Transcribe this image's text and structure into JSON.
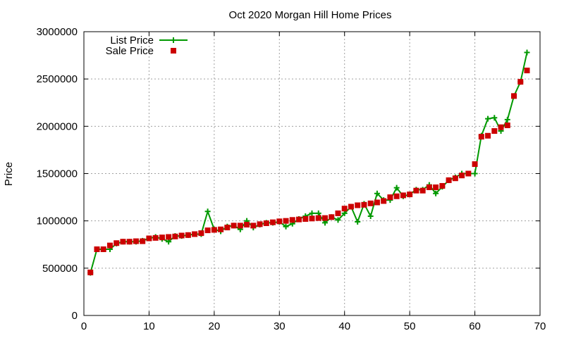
{
  "chart_data": {
    "type": "line",
    "title": "Oct 2020 Morgan Hill Home Prices",
    "xlabel": "",
    "ylabel": "Price",
    "xlim": [
      0,
      70
    ],
    "ylim": [
      0,
      3000000
    ],
    "xticks": [
      0,
      10,
      20,
      30,
      40,
      50,
      60,
      70
    ],
    "yticks": [
      0,
      500000,
      1000000,
      1500000,
      2000000,
      2500000,
      3000000
    ],
    "grid": true,
    "legend_position": "top-left",
    "colors": {
      "list": "#009900",
      "sale": "#cc0000"
    },
    "x": [
      1,
      2,
      3,
      4,
      5,
      6,
      7,
      8,
      9,
      10,
      11,
      12,
      13,
      14,
      15,
      16,
      17,
      18,
      19,
      20,
      21,
      22,
      23,
      24,
      25,
      26,
      27,
      28,
      29,
      30,
      31,
      32,
      33,
      34,
      35,
      36,
      37,
      38,
      39,
      40,
      41,
      42,
      43,
      44,
      45,
      46,
      47,
      48,
      49,
      50,
      51,
      52,
      53,
      54,
      55,
      56,
      57,
      58,
      59,
      60,
      61,
      62,
      63,
      64,
      65,
      66,
      67,
      68
    ],
    "series": [
      {
        "name": "List Price",
        "style": "line-plus",
        "values": [
          450000,
          700000,
          700000,
          700000,
          760000,
          780000,
          780000,
          780000,
          790000,
          815000,
          830000,
          810000,
          780000,
          840000,
          840000,
          850000,
          860000,
          860000,
          1100000,
          910000,
          890000,
          940000,
          950000,
          910000,
          1000000,
          930000,
          960000,
          980000,
          980000,
          990000,
          940000,
          970000,
          1020000,
          1050000,
          1080000,
          1080000,
          980000,
          1040000,
          1010000,
          1080000,
          1150000,
          990000,
          1180000,
          1050000,
          1290000,
          1220000,
          1220000,
          1350000,
          1260000,
          1280000,
          1330000,
          1330000,
          1380000,
          1290000,
          1360000,
          1430000,
          1460000,
          1500000,
          1500000,
          1500000,
          1900000,
          2080000,
          2090000,
          1950000,
          2070000,
          2320000,
          2470000,
          2780000
        ]
      },
      {
        "name": "Sale Price",
        "style": "square",
        "values": [
          455000,
          700000,
          700000,
          740000,
          765000,
          780000,
          780000,
          785000,
          785000,
          815000,
          820000,
          825000,
          830000,
          835000,
          845000,
          850000,
          860000,
          870000,
          900000,
          905000,
          910000,
          930000,
          950000,
          950000,
          960000,
          950000,
          965000,
          975000,
          985000,
          995000,
          1000000,
          1010000,
          1015000,
          1020000,
          1025000,
          1030000,
          1030000,
          1040000,
          1080000,
          1130000,
          1150000,
          1165000,
          1170000,
          1185000,
          1195000,
          1210000,
          1250000,
          1260000,
          1270000,
          1280000,
          1320000,
          1320000,
          1355000,
          1355000,
          1370000,
          1430000,
          1450000,
          1480000,
          1500000,
          1600000,
          1890000,
          1900000,
          1950000,
          1990000,
          2010000,
          2320000,
          2470000,
          2590000
        ]
      }
    ]
  }
}
